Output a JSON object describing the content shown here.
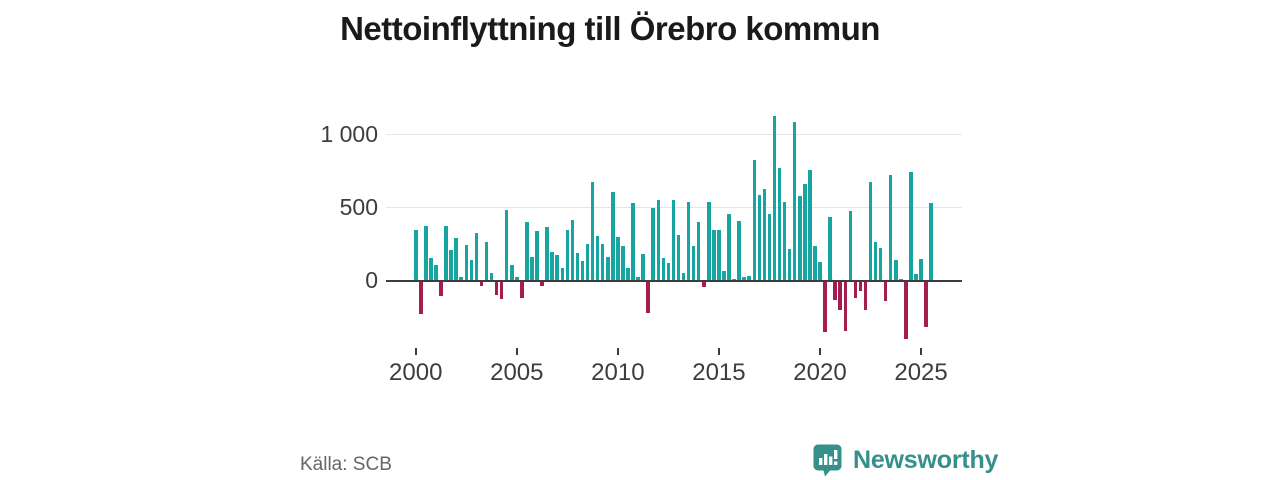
{
  "title": "Nettoinflyttning till Örebro kommun",
  "source": "Källa: SCB",
  "logo": {
    "text": "Newsworthy",
    "icon": "newsworthy-bar-chart-bubble"
  },
  "colors": {
    "positive_bar": "#16a5a0",
    "negative_bar": "#a31d4f",
    "gridline": "#e6e6e6",
    "zero_axis": "#3d3d3d",
    "axis_text": "#3d3d3d",
    "source_text": "#666666",
    "logo_teal": "#35908b",
    "title_text": "#1a1a1a"
  },
  "chart_data": {
    "type": "bar",
    "title": "Nettoinflyttning till Örebro kommun",
    "xlabel": "",
    "ylabel": "",
    "frequency": "quarterly",
    "start_period": "2000-Q1",
    "end_period": "2025-Q3",
    "values": [
      340,
      -220,
      370,
      150,
      105,
      -95,
      370,
      205,
      290,
      20,
      240,
      135,
      320,
      -30,
      260,
      45,
      -90,
      -115,
      480,
      100,
      20,
      -110,
      400,
      155,
      335,
      -25,
      365,
      190,
      170,
      85,
      345,
      410,
      185,
      130,
      250,
      670,
      300,
      245,
      155,
      600,
      295,
      235,
      85,
      530,
      20,
      180,
      -210,
      490,
      550,
      150,
      115,
      545,
      310,
      45,
      535,
      230,
      400,
      -35,
      535,
      345,
      345,
      60,
      455,
      10,
      405,
      20,
      25,
      825,
      580,
      625,
      450,
      1120,
      770,
      535,
      210,
      1085,
      575,
      655,
      755,
      235,
      125,
      -340,
      430,
      -120,
      -190,
      -335,
      470,
      -110,
      -65,
      -190,
      670,
      260,
      220,
      -130,
      720,
      135,
      10,
      -390,
      740,
      40,
      145,
      -305,
      530
    ],
    "x_ticks": [
      2000,
      2005,
      2010,
      2015,
      2020,
      2025
    ],
    "y_ticks": [
      {
        "value": 0,
        "label": "0"
      },
      {
        "value": 500,
        "label": "500"
      },
      {
        "value": 1000,
        "label": "1 000"
      }
    ],
    "ylim": [
      -450,
      1200
    ],
    "grid": "horizontal",
    "legend": "none"
  }
}
